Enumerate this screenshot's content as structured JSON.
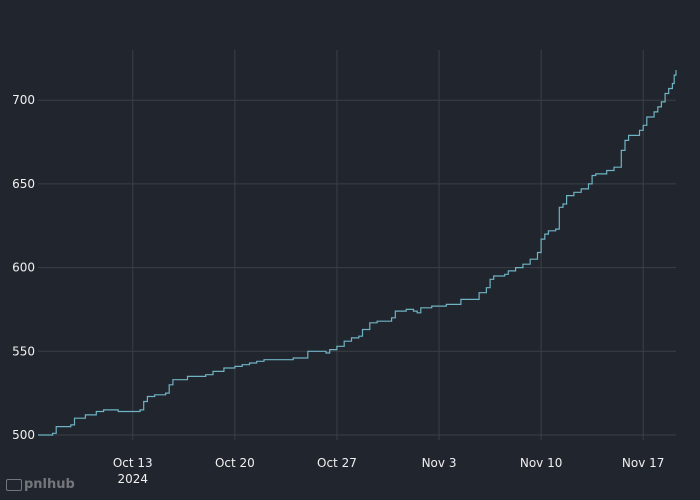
{
  "chart_data": {
    "type": "line",
    "title": "",
    "xlabel": "",
    "ylabel": "",
    "x_range": [
      "2024-10-06T12:00",
      "2024-11-19T06:00"
    ],
    "ylim": [
      497,
      730
    ],
    "grid": true,
    "x_ticks": [
      {
        "date": "2024-10-13",
        "label": "Oct 13",
        "sublabel": "2024"
      },
      {
        "date": "2024-10-20",
        "label": "Oct 20",
        "sublabel": ""
      },
      {
        "date": "2024-10-27",
        "label": "Oct 27",
        "sublabel": ""
      },
      {
        "date": "2024-11-03",
        "label": "Nov 3",
        "sublabel": ""
      },
      {
        "date": "2024-11-10",
        "label": "Nov 10",
        "sublabel": ""
      },
      {
        "date": "2024-11-17",
        "label": "Nov 17",
        "sublabel": ""
      }
    ],
    "y_ticks": [
      500,
      550,
      600,
      650,
      700
    ],
    "series": [
      {
        "color": "#6fb3c4",
        "step": true,
        "points": [
          [
            "2024-10-06T12:00",
            500
          ],
          [
            "2024-10-07T12:00",
            501
          ],
          [
            "2024-10-07T18:00",
            505
          ],
          [
            "2024-10-08T18:00",
            506
          ],
          [
            "2024-10-09T00:00",
            510
          ],
          [
            "2024-10-09T18:00",
            512
          ],
          [
            "2024-10-10T12:00",
            514
          ],
          [
            "2024-10-11T00:00",
            515
          ],
          [
            "2024-10-12T00:00",
            514
          ],
          [
            "2024-10-13T12:00",
            515
          ],
          [
            "2024-10-13T18:00",
            520
          ],
          [
            "2024-10-14T00:00",
            523
          ],
          [
            "2024-10-14T12:00",
            524
          ],
          [
            "2024-10-15T06:00",
            525
          ],
          [
            "2024-10-15T12:00",
            530
          ],
          [
            "2024-10-15T18:00",
            533
          ],
          [
            "2024-10-16T12:00",
            533
          ],
          [
            "2024-10-16T18:00",
            535
          ],
          [
            "2024-10-17T12:00",
            535
          ],
          [
            "2024-10-18T00:00",
            536
          ],
          [
            "2024-10-18T12:00",
            538
          ],
          [
            "2024-10-18T18:00",
            538
          ],
          [
            "2024-10-19T06:00",
            540
          ],
          [
            "2024-10-20T00:00",
            541
          ],
          [
            "2024-10-20T12:00",
            542
          ],
          [
            "2024-10-21T00:00",
            543
          ],
          [
            "2024-10-21T12:00",
            544
          ],
          [
            "2024-10-22T00:00",
            545
          ],
          [
            "2024-10-23T12:00",
            545
          ],
          [
            "2024-10-24T00:00",
            546
          ],
          [
            "2024-10-24T12:00",
            546
          ],
          [
            "2024-10-25T00:00",
            550
          ],
          [
            "2024-10-25T12:00",
            550
          ],
          [
            "2024-10-26T06:00",
            549
          ],
          [
            "2024-10-26T12:00",
            551
          ],
          [
            "2024-10-27T00:00",
            553
          ],
          [
            "2024-10-27T12:00",
            556
          ],
          [
            "2024-10-28T00:00",
            558
          ],
          [
            "2024-10-28T12:00",
            559
          ],
          [
            "2024-10-28T18:00",
            563
          ],
          [
            "2024-10-29T06:00",
            567
          ],
          [
            "2024-10-29T18:00",
            568
          ],
          [
            "2024-10-30T12:00",
            568
          ],
          [
            "2024-10-30T18:00",
            570
          ],
          [
            "2024-10-31T00:00",
            574
          ],
          [
            "2024-10-31T18:00",
            575
          ],
          [
            "2024-11-01T06:00",
            574
          ],
          [
            "2024-11-01T12:00",
            573
          ],
          [
            "2024-11-01T18:00",
            576
          ],
          [
            "2024-11-02T12:00",
            577
          ],
          [
            "2024-11-03T00:00",
            577
          ],
          [
            "2024-11-03T12:00",
            578
          ],
          [
            "2024-11-04T00:00",
            578
          ],
          [
            "2024-11-04T12:00",
            581
          ],
          [
            "2024-11-05T06:00",
            581
          ],
          [
            "2024-11-05T18:00",
            585
          ],
          [
            "2024-11-06T06:00",
            588
          ],
          [
            "2024-11-06T12:00",
            593
          ],
          [
            "2024-11-06T18:00",
            595
          ],
          [
            "2024-11-07T12:00",
            596
          ],
          [
            "2024-11-07T18:00",
            598
          ],
          [
            "2024-11-08T06:00",
            600
          ],
          [
            "2024-11-08T18:00",
            602
          ],
          [
            "2024-11-09T06:00",
            605
          ],
          [
            "2024-11-09T18:00",
            609
          ],
          [
            "2024-11-10T00:00",
            617
          ],
          [
            "2024-11-10T06:00",
            620
          ],
          [
            "2024-11-10T12:00",
            622
          ],
          [
            "2024-11-11T00:00",
            623
          ],
          [
            "2024-11-11T06:00",
            636
          ],
          [
            "2024-11-11T12:00",
            638
          ],
          [
            "2024-11-11T18:00",
            643
          ],
          [
            "2024-11-12T06:00",
            645
          ],
          [
            "2024-11-12T18:00",
            647
          ],
          [
            "2024-11-13T06:00",
            650
          ],
          [
            "2024-11-13T12:00",
            655
          ],
          [
            "2024-11-13T18:00",
            656
          ],
          [
            "2024-11-14T12:00",
            658
          ],
          [
            "2024-11-15T00:00",
            660
          ],
          [
            "2024-11-15T12:00",
            670
          ],
          [
            "2024-11-15T18:00",
            676
          ],
          [
            "2024-11-16T00:00",
            679
          ],
          [
            "2024-11-16T12:00",
            679
          ],
          [
            "2024-11-16T18:00",
            682
          ],
          [
            "2024-11-17T00:00",
            685
          ],
          [
            "2024-11-17T06:00",
            690
          ],
          [
            "2024-11-17T18:00",
            693
          ],
          [
            "2024-11-18T00:00",
            696
          ],
          [
            "2024-11-18T06:00",
            699
          ],
          [
            "2024-11-18T12:00",
            704
          ],
          [
            "2024-11-18T18:00",
            707
          ],
          [
            "2024-11-19T00:00",
            710
          ],
          [
            "2024-11-19T03:00",
            715
          ],
          [
            "2024-11-19T06:00",
            718
          ]
        ]
      }
    ]
  },
  "watermark": {
    "badge_icon": "pnl-badge-icon",
    "text": "pnlhub"
  }
}
